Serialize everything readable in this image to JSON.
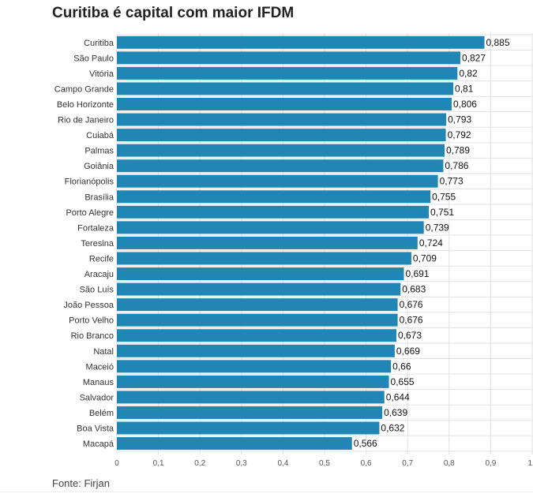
{
  "chart_data": {
    "type": "bar",
    "orientation": "horizontal",
    "title": "Curitiba é capital com maior IFDM",
    "source": "Fonte: Firjan",
    "categories": [
      "Curitiba",
      "São Paulo",
      "Vitória",
      "Campo Grande",
      "Belo Horizonte",
      "Rio de Janeiro",
      "Cuiabá",
      "Palmas",
      "Goiânia",
      "Florianópolis",
      "Brasília",
      "Porto Alegre",
      "Fortaleza",
      "Teresina",
      "Recife",
      "Aracaju",
      "São Luís",
      "João Pessoa",
      "Porto Velho",
      "Rio Branco",
      "Natal",
      "Maceió",
      "Manaus",
      "Salvador",
      "Belém",
      "Boa Vista",
      "Macapá"
    ],
    "values": [
      0.885,
      0.827,
      0.82,
      0.81,
      0.806,
      0.793,
      0.792,
      0.789,
      0.786,
      0.773,
      0.755,
      0.751,
      0.739,
      0.724,
      0.709,
      0.691,
      0.683,
      0.676,
      0.676,
      0.673,
      0.669,
      0.66,
      0.655,
      0.644,
      0.639,
      0.632,
      0.566
    ],
    "value_labels": [
      "0,885",
      "0,827",
      "0,82",
      "0,81",
      "0,806",
      "0,793",
      "0,792",
      "0,789",
      "0,786",
      "0,773",
      "0,755",
      "0,751",
      "0,739",
      "0,724",
      "0,709",
      "0,691",
      "0,683",
      "0,676",
      "0,676",
      "0,673",
      "0,669",
      "0,66",
      "0,655",
      "0,644",
      "0,639",
      "0,632",
      "0,566"
    ],
    "xlim": [
      0,
      1
    ],
    "xticks": [
      0,
      0.1,
      0.2,
      0.3,
      0.4,
      0.5,
      0.6,
      0.7,
      0.8,
      0.9,
      1
    ],
    "xtick_labels": [
      "0",
      "0,1",
      "0,2",
      "0,3",
      "0,4",
      "0,5",
      "0,6",
      "0,7",
      "0,8",
      "0,9",
      "1"
    ],
    "xlabel": "",
    "ylabel": "",
    "grid": true,
    "legend": false,
    "colors": {
      "bar": "#1f86b5",
      "gridline": "#e2e2e2"
    }
  }
}
